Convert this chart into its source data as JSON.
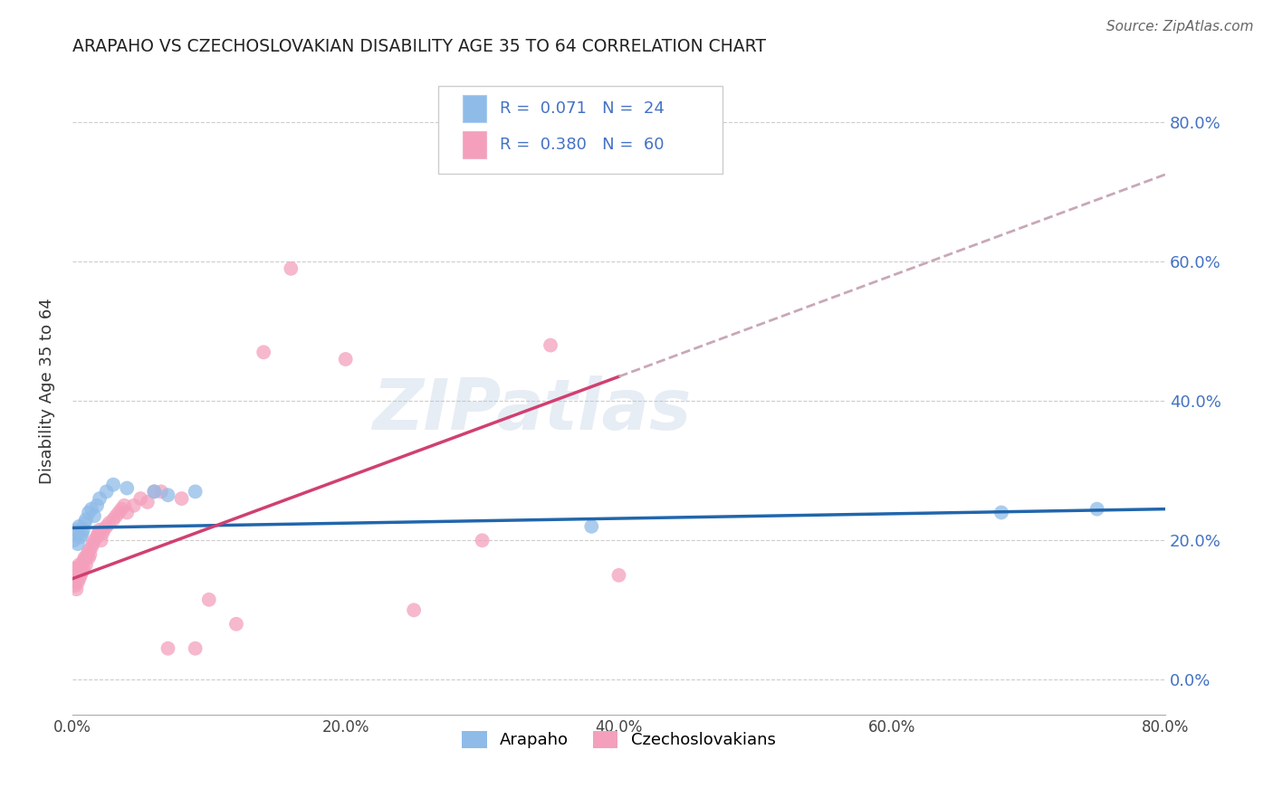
{
  "title": "ARAPAHO VS CZECHOSLOVAKIAN DISABILITY AGE 35 TO 64 CORRELATION CHART",
  "source": "Source: ZipAtlas.com",
  "ylabel": "Disability Age 35 to 64",
  "xlim": [
    0.0,
    0.8
  ],
  "ylim": [
    -0.05,
    0.88
  ],
  "xtick_vals": [
    0.0,
    0.2,
    0.4,
    0.6,
    0.8
  ],
  "xtick_labels": [
    "0.0%",
    "20.0%",
    "40.0%",
    "60.0%",
    "80.0%"
  ],
  "ytick_vals": [
    0.0,
    0.2,
    0.4,
    0.6,
    0.8
  ],
  "ytick_labels": [
    "0.0%",
    "20.0%",
    "40.0%",
    "60.0%",
    "80.0%"
  ],
  "watermark": "ZIPatlas",
  "blue_color": "#8fbbe8",
  "pink_color": "#f4a0bc",
  "trendline_blue_color": "#2166ac",
  "trendline_pink_solid_color": "#d04070",
  "trendline_pink_dashed_color": "#c8a8b8",
  "background": "#ffffff",
  "grid_color": "#cccccc",
  "arapaho_x": [
    0.001,
    0.002,
    0.003,
    0.004,
    0.005,
    0.006,
    0.007,
    0.008,
    0.009,
    0.01,
    0.012,
    0.014,
    0.016,
    0.018,
    0.02,
    0.025,
    0.03,
    0.04,
    0.06,
    0.07,
    0.09,
    0.38,
    0.68,
    0.75
  ],
  "arapaho_y": [
    0.2,
    0.21,
    0.215,
    0.195,
    0.22,
    0.205,
    0.21,
    0.215,
    0.225,
    0.23,
    0.24,
    0.245,
    0.235,
    0.25,
    0.26,
    0.27,
    0.28,
    0.275,
    0.27,
    0.265,
    0.27,
    0.22,
    0.24,
    0.245
  ],
  "czech_x": [
    0.001,
    0.001,
    0.002,
    0.002,
    0.002,
    0.003,
    0.003,
    0.004,
    0.004,
    0.004,
    0.005,
    0.005,
    0.005,
    0.006,
    0.006,
    0.007,
    0.007,
    0.008,
    0.008,
    0.009,
    0.01,
    0.01,
    0.011,
    0.012,
    0.012,
    0.013,
    0.014,
    0.015,
    0.016,
    0.018,
    0.019,
    0.02,
    0.021,
    0.022,
    0.023,
    0.025,
    0.027,
    0.03,
    0.032,
    0.034,
    0.036,
    0.038,
    0.04,
    0.045,
    0.05,
    0.055,
    0.06,
    0.065,
    0.07,
    0.08,
    0.09,
    0.1,
    0.12,
    0.14,
    0.16,
    0.2,
    0.25,
    0.3,
    0.35,
    0.4
  ],
  "czech_y": [
    0.14,
    0.15,
    0.135,
    0.145,
    0.16,
    0.13,
    0.155,
    0.14,
    0.15,
    0.16,
    0.145,
    0.155,
    0.165,
    0.15,
    0.16,
    0.165,
    0.155,
    0.17,
    0.16,
    0.175,
    0.165,
    0.175,
    0.18,
    0.185,
    0.175,
    0.18,
    0.19,
    0.195,
    0.2,
    0.205,
    0.21,
    0.215,
    0.2,
    0.21,
    0.215,
    0.22,
    0.225,
    0.23,
    0.235,
    0.24,
    0.245,
    0.25,
    0.24,
    0.25,
    0.26,
    0.255,
    0.27,
    0.27,
    0.045,
    0.26,
    0.045,
    0.115,
    0.08,
    0.47,
    0.59,
    0.46,
    0.1,
    0.2,
    0.48,
    0.15
  ],
  "czech_trendline_x0": 0.0,
  "czech_trendline_y0": 0.145,
  "czech_trendline_x1": 0.4,
  "czech_trendline_y1": 0.435,
  "czech_trendline_dash_x1": 0.8,
  "czech_trendline_dash_y1": 0.725,
  "arapaho_trendline_x0": 0.0,
  "arapaho_trendline_y0": 0.218,
  "arapaho_trendline_x1": 0.8,
  "arapaho_trendline_y1": 0.245
}
